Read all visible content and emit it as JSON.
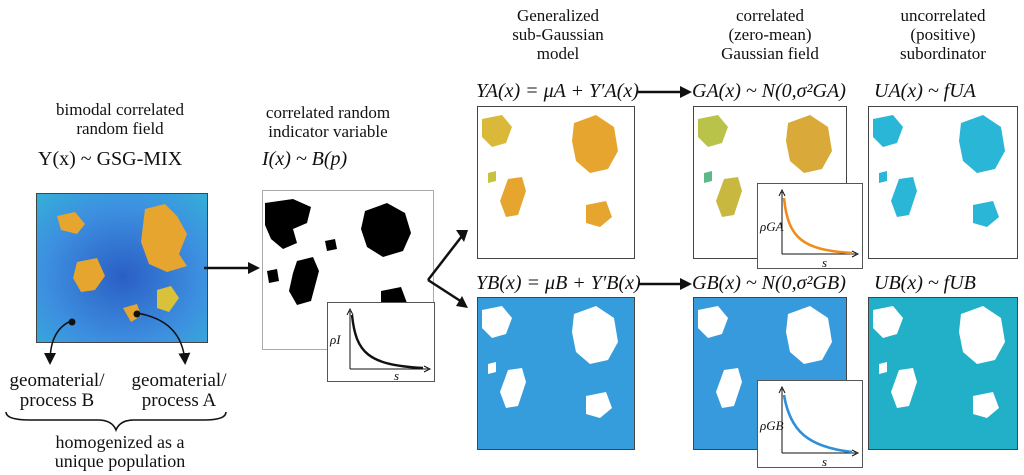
{
  "left": {
    "title_line1": "bimodal correlated",
    "title_line2": "random field",
    "formula": "Y(x) ~ GSG-MIX",
    "label_b_line1": "geomaterial/",
    "label_b_line2": "process B",
    "label_a_line1": "geomaterial/",
    "label_a_line2": "process A",
    "bottom_line1": "homogenized as a",
    "bottom_line2": "unique population"
  },
  "indicator": {
    "title_line1": "correlated random",
    "title_line2": "indicator variable",
    "formula": "I(x) ~ B(p)",
    "inset_ylabel": "ρI",
    "inset_xlabel": "s"
  },
  "gsg": {
    "title_line1": "Generalized",
    "title_line2": "sub-Gaussian",
    "title_line3": "model",
    "eq_a": "YA(x) = μA + Y′A(x)",
    "eq_b": "YB(x) = μB + Y′B(x)"
  },
  "gauss": {
    "title_line1": "correlated",
    "title_line2": "(zero-mean)",
    "title_line3": "Gaussian field",
    "eq_a": "GA(x) ~ N(0,σ²GA)",
    "eq_b": "GB(x) ~ N(0,σ²GB)",
    "inset_a_ylabel": "ρGA",
    "inset_b_ylabel": "ρGB",
    "inset_xlabel": "s"
  },
  "subord": {
    "title_line1": "uncorrelated",
    "title_line2": "(positive)",
    "title_line3": "subordinator",
    "eq_a": "UA(x) ~ fUA",
    "eq_b": "UB(x) ~ fUB"
  },
  "colors": {
    "field_blue": "#3d8fe0",
    "field_blue_dark": "#2a5fc4",
    "field_cyan": "#2ab6d6",
    "patch_orange": "#e6a52e",
    "patch_yellow": "#d9c23a",
    "curve_orange": "#f08c1a",
    "curve_blue": "#2f8fd8",
    "highlight_a": "#f6d9a8",
    "highlight_b": "#bcd7f2"
  }
}
